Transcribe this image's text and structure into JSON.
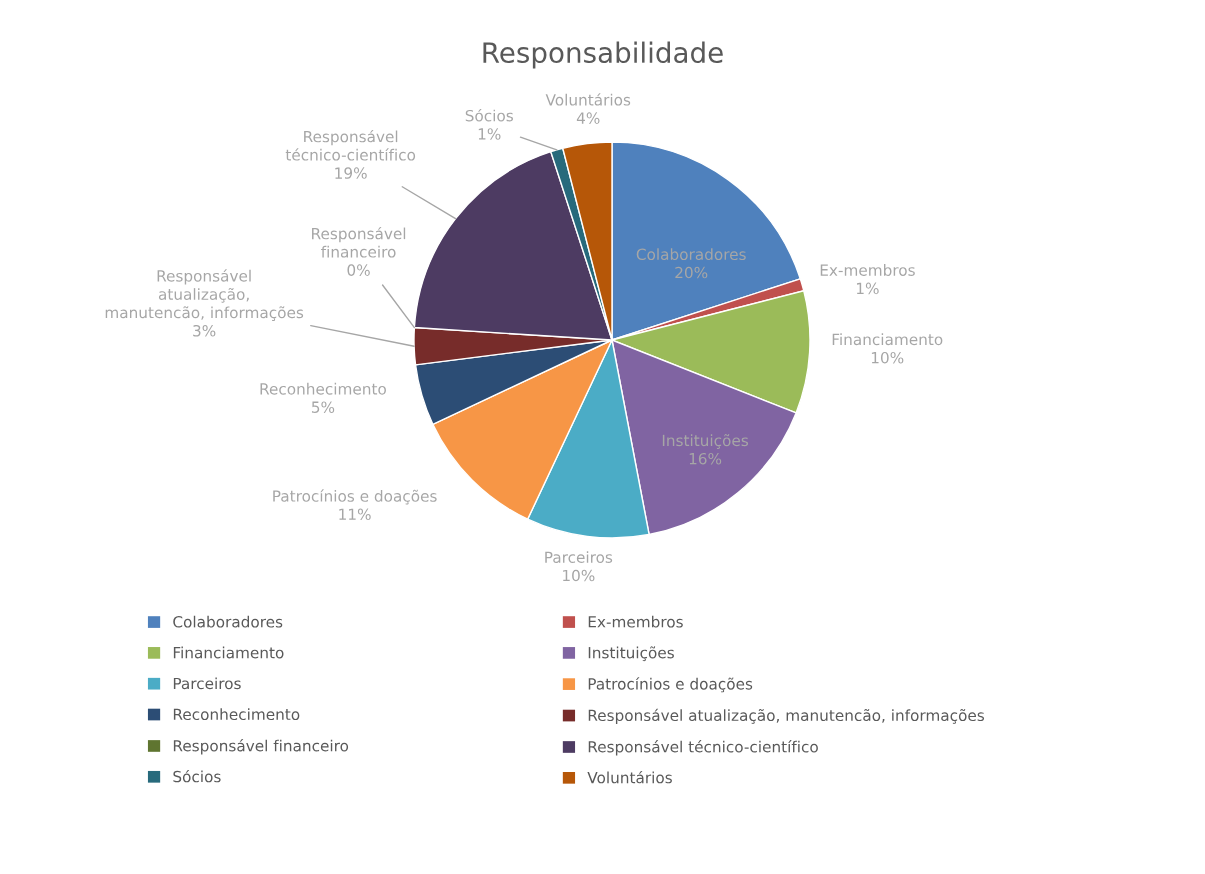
{
  "chart_data": {
    "type": "pie",
    "title": "Responsabilidade",
    "categories": [
      "Colaboradores",
      "Ex-membros",
      "Financiamento",
      "Instituições",
      "Parceiros",
      "Patrocínios e doações",
      "Reconhecimento",
      "Responsável atualização, manutencão, informações",
      "Responsável financeiro",
      "Responsável técnico-científico",
      "Sócios",
      "Voluntários"
    ],
    "values": [
      20,
      1,
      10,
      16,
      10,
      11,
      5,
      3,
      0,
      19,
      1,
      4
    ],
    "value_labels": [
      "20%",
      "1%",
      "10%",
      "16%",
      "10%",
      "11%",
      "5%",
      "3%",
      "0%",
      "19%",
      "1%",
      "4%"
    ],
    "colors": [
      "#4f81bd",
      "#c0504d",
      "#9bbb59",
      "#8064a2",
      "#4bacc6",
      "#f79646",
      "#2c4d75",
      "#772c2a",
      "#5f7530",
      "#4d3b62",
      "#276a7c",
      "#b65708"
    ],
    "legend": "bottom"
  }
}
